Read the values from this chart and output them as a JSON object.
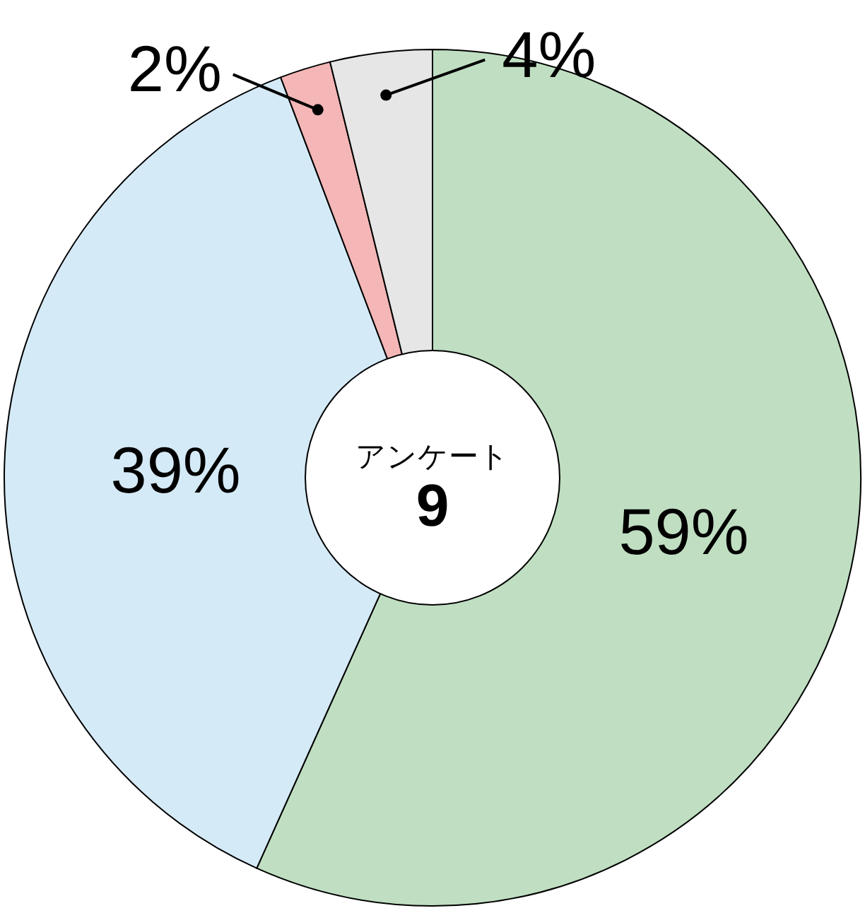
{
  "chart_data": {
    "type": "donut",
    "title": "アンケート",
    "subtitle": "9",
    "categories": [
      null,
      null,
      null,
      null
    ],
    "values": [
      59,
      39,
      2,
      4
    ],
    "colors": [
      "#c0dfc2",
      "#d5eaf7",
      "#f4b6b6",
      "#e6e6e6"
    ],
    "value_labels": [
      "59%",
      "39%",
      "2%",
      "4%"
    ]
  }
}
